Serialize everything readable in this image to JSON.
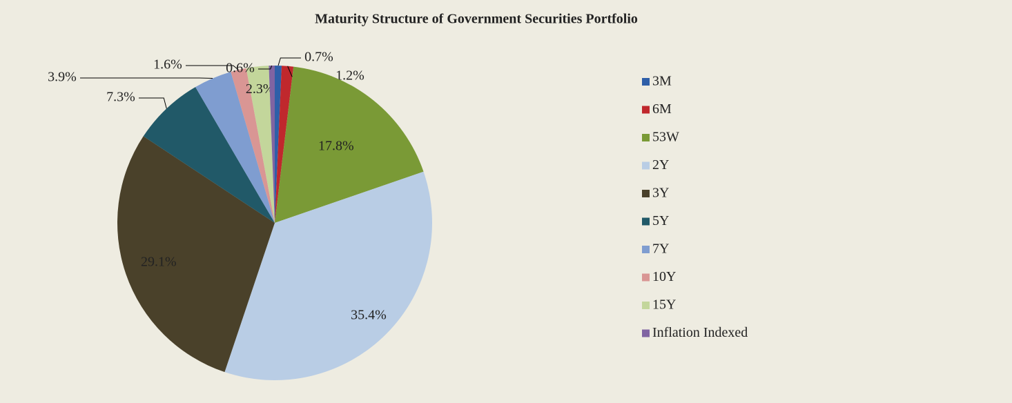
{
  "chart_data": {
    "type": "pie",
    "title": "Maturity Structure of Government Securities Portfolio",
    "categories": [
      "3M",
      "6M",
      "53W",
      "2Y",
      "3Y",
      "5Y",
      "7Y",
      "10Y",
      "15Y",
      "Inflation Indexed"
    ],
    "values": [
      0.7,
      1.2,
      17.8,
      35.4,
      29.1,
      7.3,
      3.9,
      1.6,
      2.3,
      0.6
    ],
    "value_labels": [
      "0.7%",
      "1.2%",
      "17.8%",
      "35.4%",
      "29.1%",
      "7.3%",
      "3.9%",
      "1.6%",
      "2.3%",
      "0.6%"
    ],
    "colors": [
      "#2e5fa8",
      "#c0282d",
      "#7a9a36",
      "#b9cde5",
      "#4a412a",
      "#215968",
      "#7f9dd0",
      "#d99694",
      "#c3d69b",
      "#8064a2"
    ],
    "legend": "right"
  }
}
